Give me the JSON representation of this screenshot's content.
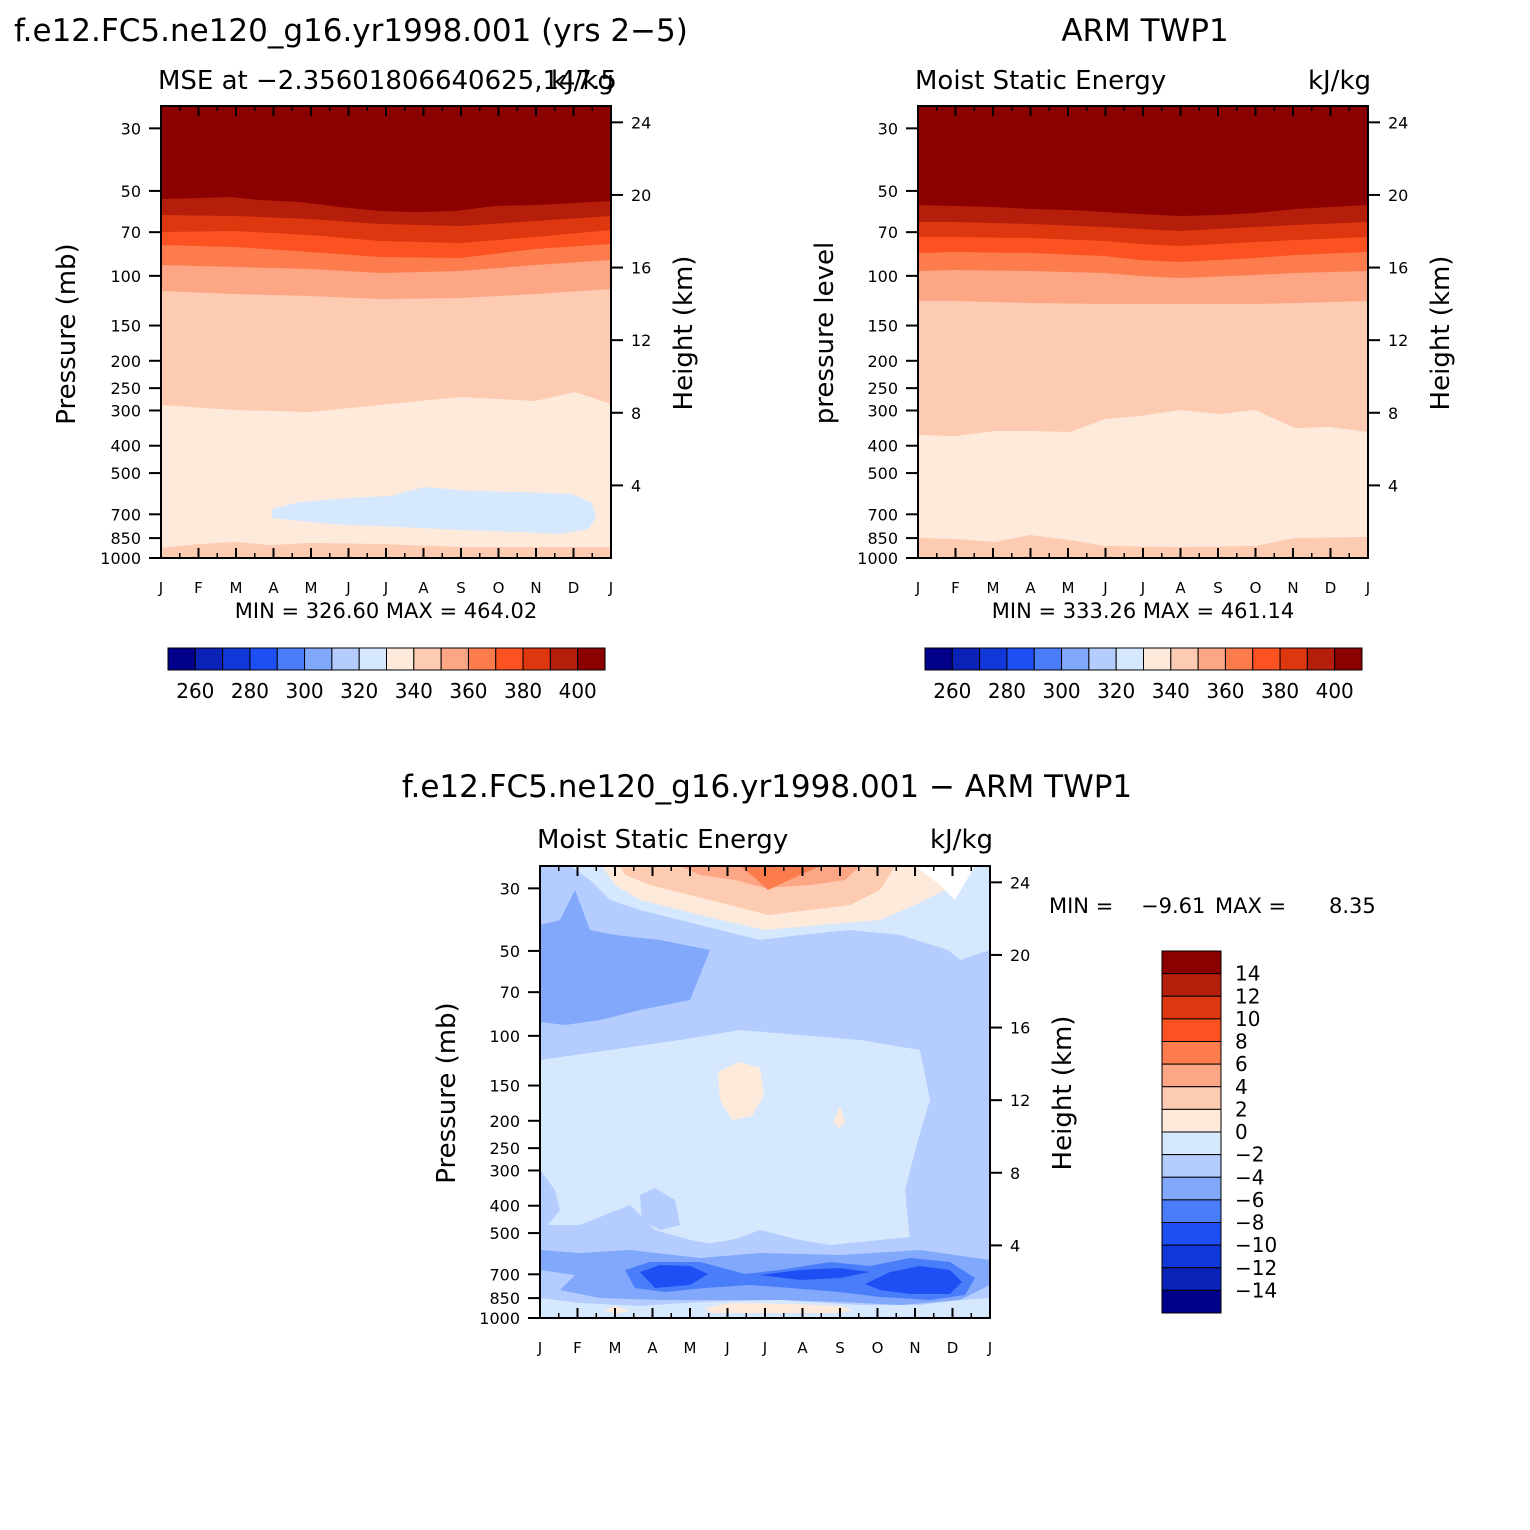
{
  "chart_data": [
    {
      "type": "heatmap",
      "panel_title": "f.e12.FC5.ne120_g16.yr1998.001 (yrs 2−5)",
      "left_label": "MSE at −2.35601806640625,147.5",
      "right_label": "kJ/kg",
      "ylabel_left": "Pressure (mb)",
      "ylabel_right": "Height (km)",
      "x_ticks": [
        "J",
        "F",
        "M",
        "A",
        "M",
        "J",
        "J",
        "A",
        "S",
        "O",
        "N",
        "D",
        "J"
      ],
      "pressure_ticks": [
        "30",
        "50",
        "70",
        "100",
        "150",
        "200",
        "250",
        "300",
        "400",
        "500",
        "700",
        "850",
        "1000"
      ],
      "height_ticks": [
        "24",
        "20",
        "16",
        "12",
        "8",
        "4"
      ],
      "stats": "MIN = 326.60 MAX = 464.02",
      "min": 326.6,
      "max": 464.02,
      "colorbar_labels": [
        "260",
        "280",
        "300",
        "320",
        "340",
        "360",
        "380",
        "400"
      ],
      "contour_bands_kJkg": [
        {
          "level_range": [
            400,
            464
          ],
          "approx_bottom_pressure_mb": 55
        },
        {
          "level_range": [
            390,
            400
          ],
          "approx_bottom_pressure_mb": 62
        },
        {
          "level_range": [
            380,
            390
          ],
          "approx_bottom_pressure_mb": 70
        },
        {
          "level_range": [
            370,
            380
          ],
          "approx_bottom_pressure_mb": 78
        },
        {
          "level_range": [
            360,
            370
          ],
          "approx_bottom_pressure_mb": 92
        },
        {
          "level_range": [
            350,
            360
          ],
          "approx_bottom_pressure_mb": 115
        },
        {
          "level_range": [
            340,
            350
          ],
          "approx_bottom_pressure_mb": 300
        },
        {
          "level_range": [
            330,
            340
          ],
          "approx_bottom_pressure_mb": 950
        },
        {
          "level_range": [
            320,
            330
          ],
          "note": "mid-level minimum ~600-750 mb, Apr-Dec"
        }
      ]
    },
    {
      "type": "heatmap",
      "panel_title": "ARM TWP1",
      "left_label": "Moist Static Energy",
      "right_label": "kJ/kg",
      "ylabel_left": "pressure level",
      "ylabel_right": "Height (km)",
      "x_ticks": [
        "J",
        "F",
        "M",
        "A",
        "M",
        "J",
        "J",
        "A",
        "S",
        "O",
        "N",
        "D",
        "J"
      ],
      "pressure_ticks": [
        "30",
        "50",
        "70",
        "100",
        "150",
        "200",
        "250",
        "300",
        "400",
        "500",
        "700",
        "850",
        "1000"
      ],
      "height_ticks": [
        "24",
        "20",
        "16",
        "12",
        "8",
        "4"
      ],
      "stats": "MIN = 333.26 MAX = 461.14",
      "min": 333.26,
      "max": 461.14,
      "colorbar_labels": [
        "260",
        "280",
        "300",
        "320",
        "340",
        "360",
        "380",
        "400"
      ],
      "contour_bands_kJkg": [
        {
          "level_range": [
            400,
            461
          ],
          "approx_bottom_pressure_mb": 58
        },
        {
          "level_range": [
            390,
            400
          ],
          "approx_bottom_pressure_mb": 66
        },
        {
          "level_range": [
            380,
            390
          ],
          "approx_bottom_pressure_mb": 75
        },
        {
          "level_range": [
            370,
            380
          ],
          "approx_bottom_pressure_mb": 86
        },
        {
          "level_range": [
            360,
            370
          ],
          "approx_bottom_pressure_mb": 100
        },
        {
          "level_range": [
            350,
            360
          ],
          "approx_bottom_pressure_mb": 122
        },
        {
          "level_range": [
            340,
            350
          ],
          "approx_bottom_pressure_mb": 340
        },
        {
          "level_range": [
            330,
            340
          ],
          "approx_bottom_pressure_mb": 900
        }
      ]
    },
    {
      "type": "heatmap",
      "panel_title": "f.e12.FC5.ne120_g16.yr1998.001 − ARM TWP1",
      "left_label": "Moist Static Energy",
      "right_label": "kJ/kg",
      "ylabel_left": "Pressure (mb)",
      "ylabel_right": "Height (km)",
      "x_ticks": [
        "J",
        "F",
        "M",
        "A",
        "M",
        "J",
        "J",
        "A",
        "S",
        "O",
        "N",
        "D",
        "J"
      ],
      "pressure_ticks": [
        "30",
        "50",
        "70",
        "100",
        "150",
        "200",
        "250",
        "300",
        "400",
        "500",
        "700",
        "850",
        "1000"
      ],
      "height_ticks": [
        "24",
        "20",
        "16",
        "12",
        "8",
        "4"
      ],
      "stats_min_label": "MIN =",
      "stats_min_value": "−9.61",
      "stats_max_label": "MAX =",
      "stats_max_value": "8.35",
      "min": -9.61,
      "max": 8.35,
      "colorbar_labels": [
        "14",
        "12",
        "10",
        "8",
        "6",
        "4",
        "2",
        "0",
        "−2",
        "−4",
        "−6",
        "−8",
        "−10",
        "−12",
        "−14"
      ],
      "features": [
        {
          "value_range": [
            2,
            6
          ],
          "location": "above 40 mb, Mar-Oct"
        },
        {
          "value_range": [
            -6,
            -4
          ],
          "location": "30-100 mb, Jan-May"
        },
        {
          "value_range": [
            -2,
            0
          ],
          "location": "120-500 mb, most months"
        },
        {
          "value_range": [
            0,
            2
          ],
          "location": "~150 mb, Jun"
        },
        {
          "value_range": [
            -10,
            -6
          ],
          "location": "700-850 mb, Apr-May and Jul-Dec"
        },
        {
          "value_range": [
            0,
            2
          ],
          "location": "near 950 mb, Jun-Sep"
        }
      ]
    }
  ],
  "colors": {
    "mse_palette": [
      "#00008b",
      "#0a22b5",
      "#1237d8",
      "#1e4ff5",
      "#4a7dfa",
      "#82a8fc",
      "#b4ccfe",
      "#d6e8fe",
      "#feeadb",
      "#fdcab2",
      "#fca686",
      "#fc7c4d",
      "#fc5120",
      "#dd3710",
      "#b51e0a",
      "#8b0000"
    ],
    "diff_palette_top_to_bottom": [
      "#8b0000",
      "#b51e0a",
      "#dd3710",
      "#fc5120",
      "#fc7c4d",
      "#fca686",
      "#fdcab2",
      "#feeadb",
      "#d6e8fe",
      "#b4ccfe",
      "#82a8fc",
      "#4a7dfa",
      "#1e4ff5",
      "#1237d8",
      "#0a22b5",
      "#00008b"
    ]
  }
}
